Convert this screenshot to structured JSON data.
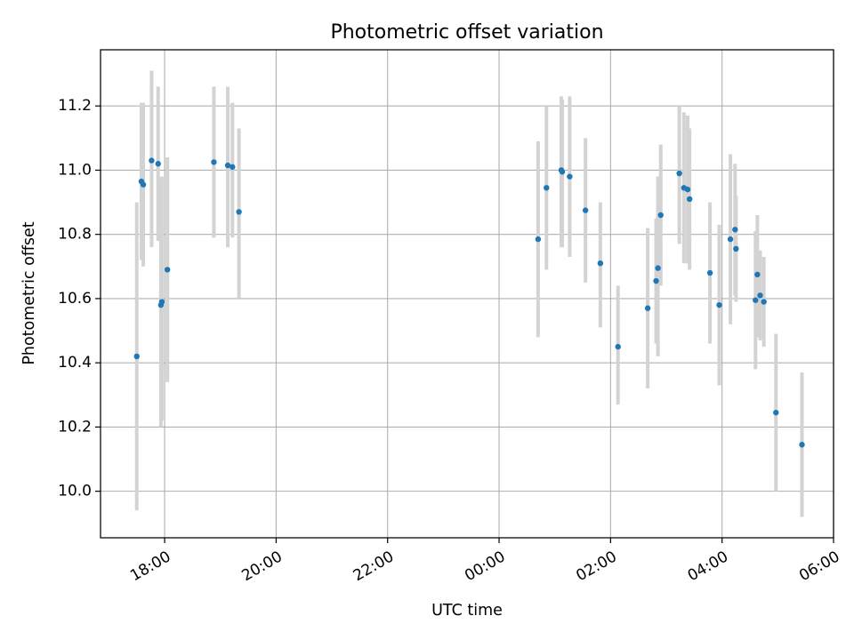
{
  "chart_data": {
    "type": "scatter",
    "title": "Photometric offset variation",
    "xlabel": "UTC time",
    "ylabel": "Photometric offset",
    "x_tick_labels": [
      "18:00",
      "20:00",
      "22:00",
      "00:00",
      "02:00",
      "04:00",
      "06:00"
    ],
    "y_tick_labels": [
      "10.0",
      "10.2",
      "10.4",
      "10.6",
      "10.8",
      "11.0",
      "11.2"
    ],
    "x_ticks": [
      "18:00",
      "20:00",
      "22:00",
      "24:00",
      "26:00",
      "28:00",
      "30:00"
    ],
    "y_ticks": [
      10.0,
      10.2,
      10.4,
      10.6,
      10.8,
      11.0,
      11.2
    ],
    "xlim": [
      "16:51",
      "30:00"
    ],
    "ylim": [
      9.855,
      11.375
    ],
    "grid": true,
    "colors": {
      "points": "#1f77b4",
      "error_bars": "#d3d3d3",
      "grid": "#b0b0b0"
    },
    "series": [
      {
        "points": [
          {
            "x": "17:30",
            "y": 10.42,
            "yerr": [
              9.94,
              10.9
            ]
          },
          {
            "x": "17:35",
            "y": 10.965,
            "yerr": [
              10.72,
              11.21
            ]
          },
          {
            "x": "17:37",
            "y": 10.955,
            "yerr": [
              10.7,
              11.21
            ]
          },
          {
            "x": "17:46",
            "y": 11.03,
            "yerr": [
              10.76,
              11.31
            ]
          },
          {
            "x": "17:53",
            "y": 11.02,
            "yerr": [
              10.78,
              11.26
            ]
          },
          {
            "x": "17:56",
            "y": 10.58,
            "yerr": [
              10.2,
              10.97
            ]
          },
          {
            "x": "17:57",
            "y": 10.59,
            "yerr": [
              10.22,
              10.98
            ]
          },
          {
            "x": "18:03",
            "y": 10.69,
            "yerr": [
              10.34,
              11.04
            ]
          },
          {
            "x": "18:53",
            "y": 11.025,
            "yerr": [
              10.79,
              11.26
            ]
          },
          {
            "x": "19:08",
            "y": 11.015,
            "yerr": [
              10.76,
              11.26
            ]
          },
          {
            "x": "19:13",
            "y": 11.01,
            "yerr": [
              10.79,
              11.21
            ]
          },
          {
            "x": "19:20",
            "y": 10.87,
            "yerr": [
              10.6,
              11.13
            ]
          },
          {
            "x": "24:42",
            "y": 10.785,
            "yerr": [
              10.48,
              11.09
            ]
          },
          {
            "x": "24:51",
            "y": 10.945,
            "yerr": [
              10.69,
              11.2
            ]
          },
          {
            "x": "25:07",
            "y": 11.0,
            "yerr": [
              10.76,
              11.23
            ]
          },
          {
            "x": "25:08",
            "y": 10.995,
            "yerr": [
              10.76,
              11.22
            ]
          },
          {
            "x": "25:16",
            "y": 10.98,
            "yerr": [
              10.73,
              11.23
            ]
          },
          {
            "x": "25:33",
            "y": 10.875,
            "yerr": [
              10.65,
              11.1
            ]
          },
          {
            "x": "25:49",
            "y": 10.71,
            "yerr": [
              10.51,
              10.9
            ]
          },
          {
            "x": "26:08",
            "y": 10.45,
            "yerr": [
              10.27,
              10.64
            ]
          },
          {
            "x": "26:40",
            "y": 10.57,
            "yerr": [
              10.32,
              10.82
            ]
          },
          {
            "x": "26:49",
            "y": 10.655,
            "yerr": [
              10.46,
              10.85
            ]
          },
          {
            "x": "26:51",
            "y": 10.695,
            "yerr": [
              10.42,
              10.98
            ]
          },
          {
            "x": "26:54",
            "y": 10.86,
            "yerr": [
              10.64,
              11.08
            ]
          },
          {
            "x": "27:14",
            "y": 10.99,
            "yerr": [
              10.77,
              11.2
            ]
          },
          {
            "x": "27:19",
            "y": 10.945,
            "yerr": [
              10.71,
              11.18
            ]
          },
          {
            "x": "27:23",
            "y": 10.94,
            "yerr": [
              10.71,
              11.17
            ]
          },
          {
            "x": "27:25",
            "y": 10.91,
            "yerr": [
              10.69,
              11.13
            ]
          },
          {
            "x": "27:47",
            "y": 10.68,
            "yerr": [
              10.46,
              10.9
            ]
          },
          {
            "x": "27:57",
            "y": 10.58,
            "yerr": [
              10.33,
              10.83
            ]
          },
          {
            "x": "28:09",
            "y": 10.785,
            "yerr": [
              10.52,
              11.05
            ]
          },
          {
            "x": "28:14",
            "y": 10.815,
            "yerr": [
              10.61,
              11.02
            ]
          },
          {
            "x": "28:15",
            "y": 10.755,
            "yerr": [
              10.59,
              10.92
            ]
          },
          {
            "x": "28:36",
            "y": 10.595,
            "yerr": [
              10.38,
              10.81
            ]
          },
          {
            "x": "28:38",
            "y": 10.675,
            "yerr": [
              10.48,
              10.86
            ]
          },
          {
            "x": "28:41",
            "y": 10.61,
            "yerr": [
              10.47,
              10.75
            ]
          },
          {
            "x": "28:45",
            "y": 10.59,
            "yerr": [
              10.45,
              10.73
            ]
          },
          {
            "x": "28:58",
            "y": 10.245,
            "yerr": [
              10.0,
              10.49
            ]
          },
          {
            "x": "29:26",
            "y": 10.145,
            "yerr": [
              9.92,
              10.37
            ]
          }
        ]
      }
    ]
  }
}
